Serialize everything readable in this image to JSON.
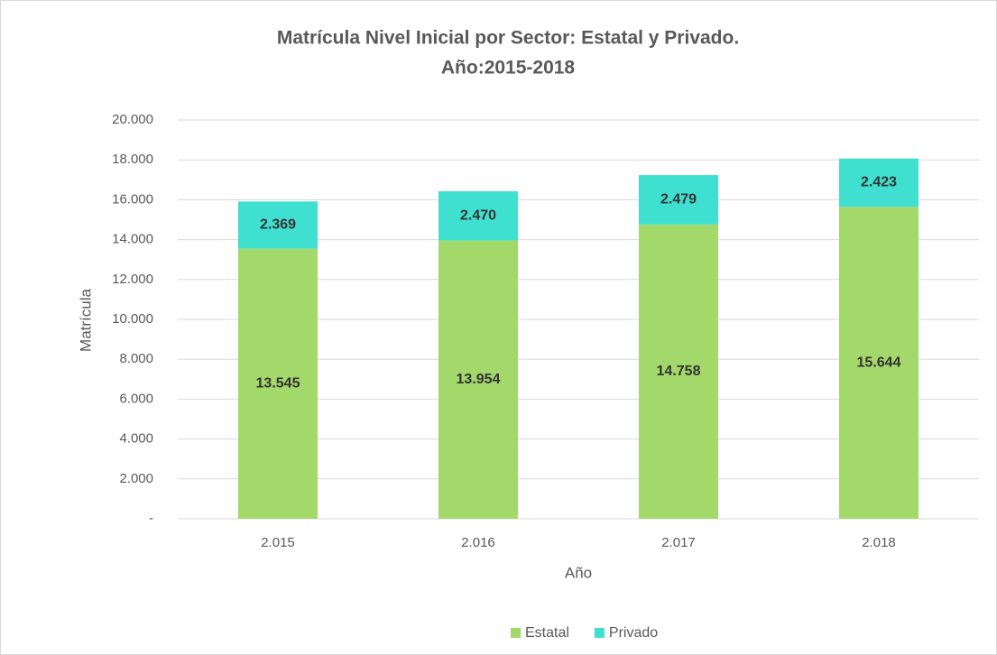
{
  "chart_data": {
    "type": "stacked_bar",
    "title": [
      "Matrícula Nivel Inicial por Sector: Estatal y Privado.",
      "Año:2015-2018"
    ],
    "x_label": "Año",
    "y_label": "Matrícula",
    "categories": [
      "2.015",
      "2.016",
      "2.017",
      "2.018"
    ],
    "series": [
      {
        "name": "Estatal",
        "color": "#a3d86b",
        "values": [
          13545,
          13954,
          14758,
          15644
        ],
        "value_labels": [
          "13.545",
          "13.954",
          "14.758",
          "15.644"
        ]
      },
      {
        "name": "Privado",
        "color": "#40e0d0",
        "values": [
          2369,
          2470,
          2479,
          2423
        ],
        "value_labels": [
          "2.369",
          "2.470",
          "2.479",
          "2.423"
        ]
      }
    ],
    "ylim": [
      0,
      20000
    ],
    "yticks": [
      {
        "value": 0,
        "label": "-"
      },
      {
        "value": 2000,
        "label": "2.000"
      },
      {
        "value": 4000,
        "label": "4.000"
      },
      {
        "value": 6000,
        "label": "6.000"
      },
      {
        "value": 8000,
        "label": "8.000"
      },
      {
        "value": 10000,
        "label": "10.000"
      },
      {
        "value": 12000,
        "label": "12.000"
      },
      {
        "value": 14000,
        "label": "14.000"
      },
      {
        "value": 16000,
        "label": "16.000"
      },
      {
        "value": 18000,
        "label": "18.000"
      },
      {
        "value": 20000,
        "label": "20.000"
      }
    ],
    "grid": true,
    "legend": "bottom"
  }
}
